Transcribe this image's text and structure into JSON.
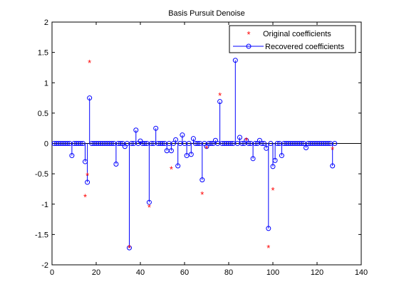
{
  "chart_data": {
    "type": "stem",
    "title": "Basis Pursuit Denoise",
    "xlabel": "",
    "ylabel": "",
    "xlim": [
      0,
      140
    ],
    "ylim": [
      -2,
      2
    ],
    "x_ticks": [
      "0",
      "20",
      "40",
      "60",
      "80",
      "100",
      "120",
      "140"
    ],
    "y_ticks": [
      "2",
      "1.5",
      "1",
      "0.5",
      "0",
      "-0.5",
      "-1",
      "-1.5",
      "-2"
    ],
    "legend": {
      "placement": "top-right",
      "entries": [
        "Original coefficients",
        "Recovered coefficients"
      ]
    },
    "colors": {
      "original": "#ff0000",
      "recovered": "#0000ff",
      "axes": "#000000"
    },
    "series": [
      {
        "name": "Original coefficients",
        "marker": "*",
        "points": [
          [
            15,
            -0.88
          ],
          [
            16,
            -0.53
          ],
          [
            17,
            1.33
          ],
          [
            35,
            -1.72
          ],
          [
            44,
            -1.05
          ],
          [
            54,
            -0.42
          ],
          [
            68,
            -0.84
          ],
          [
            70,
            -0.08
          ],
          [
            76,
            0.79
          ],
          [
            88,
            0.05
          ],
          [
            98,
            -1.72
          ],
          [
            100,
            -0.77
          ],
          [
            127,
            -0.1
          ]
        ]
      },
      {
        "name": "Recovered coefficients",
        "marker": "o",
        "points": [
          [
            9,
            -0.2
          ],
          [
            15,
            -0.3
          ],
          [
            16,
            -0.64
          ],
          [
            17,
            0.75
          ],
          [
            29,
            -0.34
          ],
          [
            33,
            -0.05
          ],
          [
            35,
            -1.72
          ],
          [
            38,
            0.22
          ],
          [
            40,
            0.04
          ],
          [
            44,
            -0.97
          ],
          [
            47,
            0.25
          ],
          [
            52,
            -0.12
          ],
          [
            54,
            -0.12
          ],
          [
            56,
            0.06
          ],
          [
            57,
            -0.37
          ],
          [
            59,
            0.14
          ],
          [
            61,
            -0.2
          ],
          [
            63,
            -0.18
          ],
          [
            64,
            0.08
          ],
          [
            68,
            -0.6
          ],
          [
            70,
            -0.05
          ],
          [
            74,
            0.05
          ],
          [
            76,
            0.69
          ],
          [
            83,
            1.37
          ],
          [
            85,
            0.1
          ],
          [
            88,
            0.05
          ],
          [
            91,
            -0.25
          ],
          [
            94,
            0.05
          ],
          [
            97,
            -0.08
          ],
          [
            98,
            -1.4
          ],
          [
            100,
            -0.38
          ],
          [
            101,
            -0.28
          ],
          [
            104,
            -0.2
          ],
          [
            115,
            -0.07
          ],
          [
            127,
            -0.37
          ]
        ]
      }
    ]
  }
}
